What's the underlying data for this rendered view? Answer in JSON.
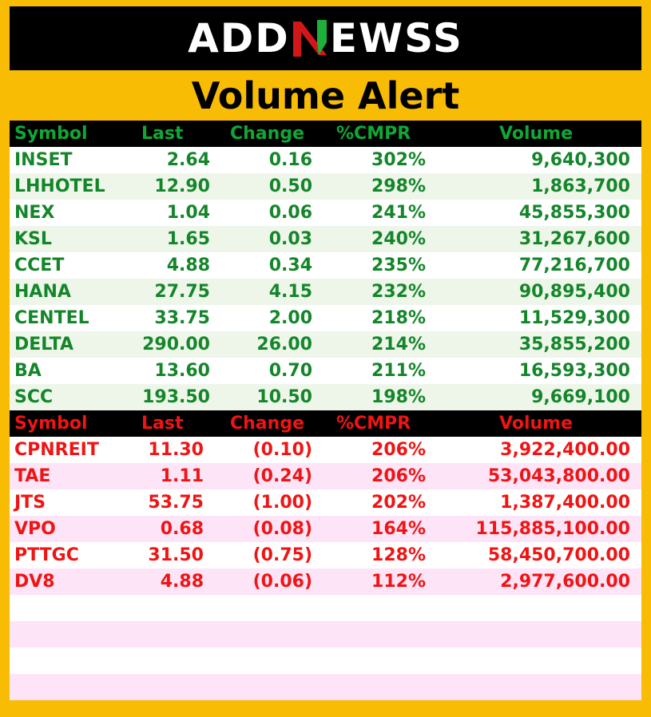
{
  "brand": {
    "before": "ADD",
    "after": "EWSS"
  },
  "title": "Volume Alert",
  "colors": {
    "gain_text": "#14862a",
    "loss_text": "#f01414",
    "background": "#f9bc04"
  },
  "gainers": {
    "headers": {
      "symbol": "Symbol",
      "last": "Last",
      "change": "Change",
      "pct": "%CMPR",
      "volume": "Volume"
    },
    "rows": [
      {
        "symbol": "INSET",
        "last": "2.64",
        "change": "0.16",
        "pct": "302%",
        "volume": "9,640,300"
      },
      {
        "symbol": "LHHOTEL",
        "last": "12.90",
        "change": "0.50",
        "pct": "298%",
        "volume": "1,863,700"
      },
      {
        "symbol": "NEX",
        "last": "1.04",
        "change": "0.06",
        "pct": "241%",
        "volume": "45,855,300"
      },
      {
        "symbol": "KSL",
        "last": "1.65",
        "change": "0.03",
        "pct": "240%",
        "volume": "31,267,600"
      },
      {
        "symbol": "CCET",
        "last": "4.88",
        "change": "0.34",
        "pct": "235%",
        "volume": "77,216,700"
      },
      {
        "symbol": "HANA",
        "last": "27.75",
        "change": "4.15",
        "pct": "232%",
        "volume": "90,895,400"
      },
      {
        "symbol": "CENTEL",
        "last": "33.75",
        "change": "2.00",
        "pct": "218%",
        "volume": "11,529,300"
      },
      {
        "symbol": "DELTA",
        "last": "290.00",
        "change": "26.00",
        "pct": "214%",
        "volume": "35,855,200"
      },
      {
        "symbol": "BA",
        "last": "13.60",
        "change": "0.70",
        "pct": "211%",
        "volume": "16,593,300"
      },
      {
        "symbol": "SCC",
        "last": "193.50",
        "change": "10.50",
        "pct": "198%",
        "volume": "9,669,100"
      }
    ]
  },
  "losers": {
    "headers": {
      "symbol": "Symbol",
      "last": "Last",
      "change": "Change",
      "pct": "%CMPR",
      "volume": "Volume"
    },
    "rows": [
      {
        "symbol": "CPNREIT",
        "last": "11.30",
        "change": "(0.10)",
        "pct": "206%",
        "volume": "3,922,400.00"
      },
      {
        "symbol": "TAE",
        "last": "1.11",
        "change": "(0.24)",
        "pct": "206%",
        "volume": "53,043,800.00"
      },
      {
        "symbol": "JTS",
        "last": "53.75",
        "change": "(1.00)",
        "pct": "202%",
        "volume": "1,387,400.00"
      },
      {
        "symbol": "VPO",
        "last": "0.68",
        "change": "(0.08)",
        "pct": "164%",
        "volume": "115,885,100.00"
      },
      {
        "symbol": "PTTGC",
        "last": "31.50",
        "change": "(0.75)",
        "pct": "128%",
        "volume": "58,450,700.00"
      },
      {
        "symbol": "DV8",
        "last": "4.88",
        "change": "(0.06)",
        "pct": "112%",
        "volume": "2,977,600.00"
      }
    ]
  }
}
